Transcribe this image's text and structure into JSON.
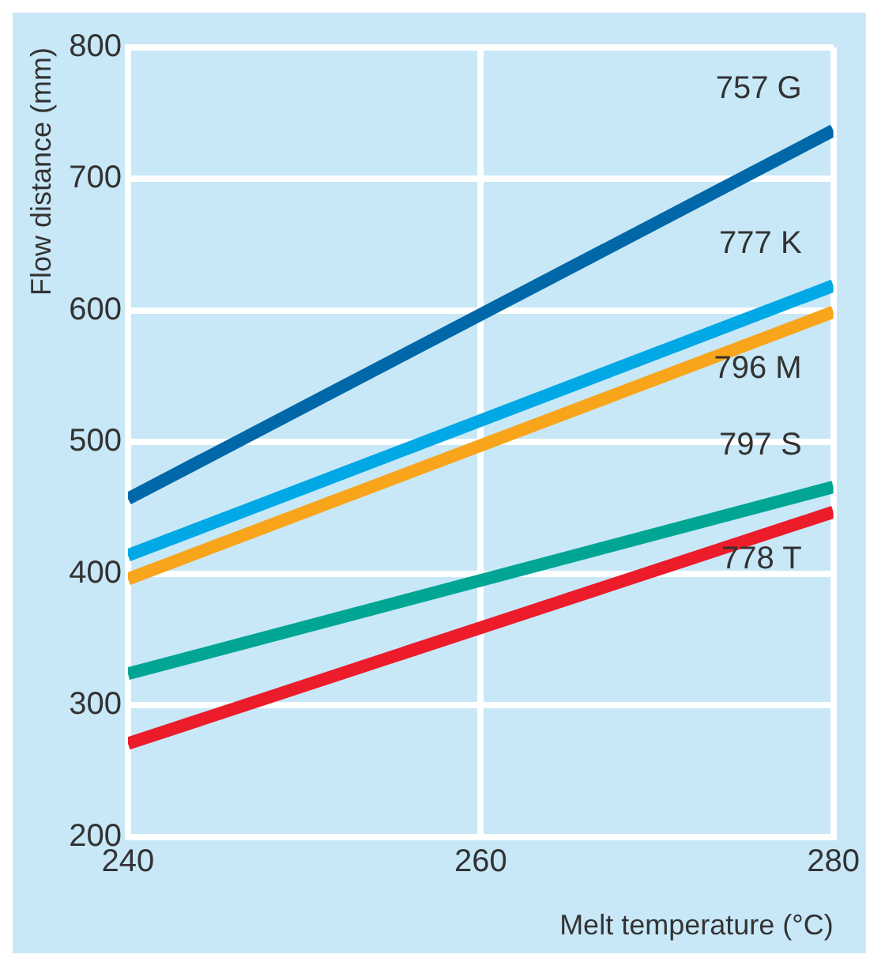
{
  "chart_data": {
    "type": "line",
    "xlabel": "Melt temperature (°C)",
    "ylabel": "Flow distance (mm)",
    "x": [
      240,
      280
    ],
    "xlim": [
      240,
      280
    ],
    "xticks": [
      240,
      260,
      280
    ],
    "ylim": [
      200,
      800
    ],
    "yticks": [
      200,
      300,
      400,
      500,
      600,
      700,
      800
    ],
    "grid": true,
    "legend": false,
    "marker": "none",
    "line_style": "solid",
    "series": [
      {
        "name": "757 G",
        "color": "#0068a8",
        "values": [
          457,
          737
        ]
      },
      {
        "name": "777 K",
        "color": "#00a9e6",
        "values": [
          414,
          619
        ]
      },
      {
        "name": "796 M",
        "color": "#f9a51b",
        "values": [
          396,
          599
        ]
      },
      {
        "name": "797 S",
        "color": "#00a693",
        "values": [
          324,
          466
        ]
      },
      {
        "name": "778 T",
        "color": "#ec1c2b",
        "values": [
          271,
          447
        ]
      }
    ]
  }
}
